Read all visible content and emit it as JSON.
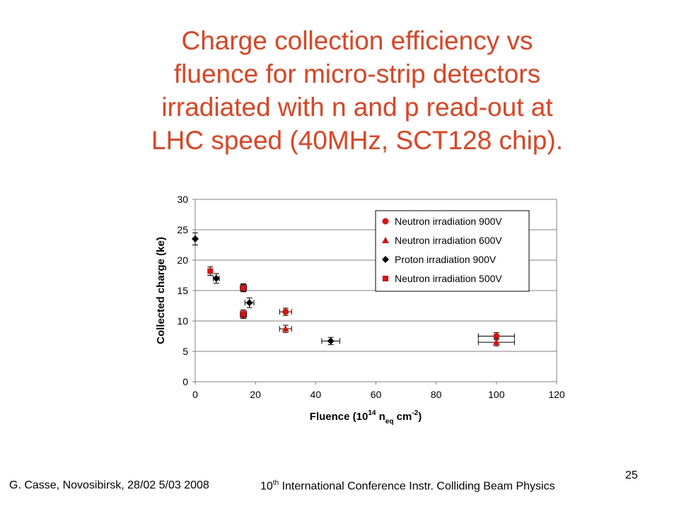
{
  "slide": {
    "title_lines": [
      "Charge collection efficiency vs",
      "fluence for micro-strip detectors",
      "irradiated with n and p read-out at",
      "LHC speed (40MHz, SCT128 chip)."
    ],
    "footer_left": "G. Casse, Novosibirsk, 28/02 5/03 2008",
    "footer_mid_prefix": "10",
    "footer_mid_sup": "th",
    "footer_mid_rest": " International Conference Instr. Colliding Beam Physics",
    "page_number": "25"
  },
  "chart_data": {
    "type": "scatter",
    "xlim": [
      0,
      120
    ],
    "ylim": [
      0,
      30
    ],
    "xticks": [
      0,
      20,
      40,
      60,
      80,
      100,
      120
    ],
    "yticks": [
      0,
      5,
      10,
      15,
      20,
      25,
      30
    ],
    "ylabel": "Collected charge (ke)",
    "xlabel": {
      "prefix": "Fluence (10",
      "exp1": "14",
      "mid": " n",
      "sub": "eq",
      "unit": " cm",
      "exp2": "-2",
      "suffix": ")"
    },
    "grid": "horizontal",
    "legend_position": "top-right",
    "series": [
      {
        "name": "Neutron irradiation 900V",
        "marker": "circle",
        "color": "#dd1111",
        "points": [
          {
            "x": 16,
            "y": 15.5,
            "xerr": 1,
            "yerr": 0.6
          },
          {
            "x": 30,
            "y": 11.5,
            "xerr": 2,
            "yerr": 0.6
          },
          {
            "x": 100,
            "y": 7.5,
            "xerr": 6,
            "yerr": 0.6
          }
        ]
      },
      {
        "name": "Neutron irradiation 600V",
        "marker": "triangle",
        "color": "#dd1111",
        "points": [
          {
            "x": 16,
            "y": 11,
            "xerr": 1,
            "yerr": 0.6
          },
          {
            "x": 30,
            "y": 8.7,
            "xerr": 2,
            "yerr": 0.6
          },
          {
            "x": 100,
            "y": 6.5,
            "xerr": 6,
            "yerr": 0.6
          }
        ]
      },
      {
        "name": "Proton irradiation 900V",
        "marker": "diamond",
        "color": "#000000",
        "points": [
          {
            "x": 0,
            "y": 23.5,
            "xerr": 0,
            "yerr": 1
          },
          {
            "x": 7,
            "y": 17,
            "xerr": 1,
            "yerr": 0.8
          },
          {
            "x": 18,
            "y": 13,
            "xerr": 1.5,
            "yerr": 0.8
          },
          {
            "x": 45,
            "y": 6.7,
            "xerr": 3,
            "yerr": 0.6
          }
        ]
      },
      {
        "name": "Neutron irradiation 500V",
        "marker": "square",
        "color": "#dd1111",
        "points": [
          {
            "x": 5,
            "y": 18.2,
            "xerr": 0.5,
            "yerr": 0.7
          },
          {
            "x": 16,
            "y": 15.4,
            "xerr": 1,
            "yerr": 0.6
          },
          {
            "x": 16,
            "y": 11.2,
            "xerr": 1,
            "yerr": 0.6
          }
        ]
      }
    ]
  }
}
